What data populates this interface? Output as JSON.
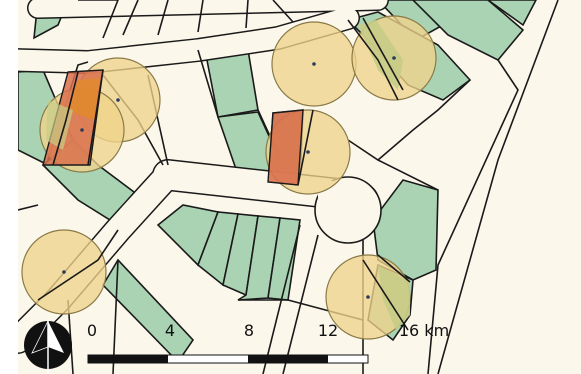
{
  "map": {
    "colors": {
      "background": "#fbf7ea",
      "parcel_green": "#a9d3b2",
      "parcel_outline": "#1a1a1a",
      "buffer_fill": "#f0d48a",
      "overlap_green": "#c7cc86",
      "overlap_red": "#d9704c",
      "overlap_orange": "#e0882f",
      "point_color": "#2b3a5c"
    },
    "north_arrow": {
      "icon": "north-arrow-icon"
    },
    "scale_bar": {
      "labels": [
        "0",
        "4",
        "8",
        "12",
        "16 km"
      ],
      "unit": "km"
    }
  }
}
